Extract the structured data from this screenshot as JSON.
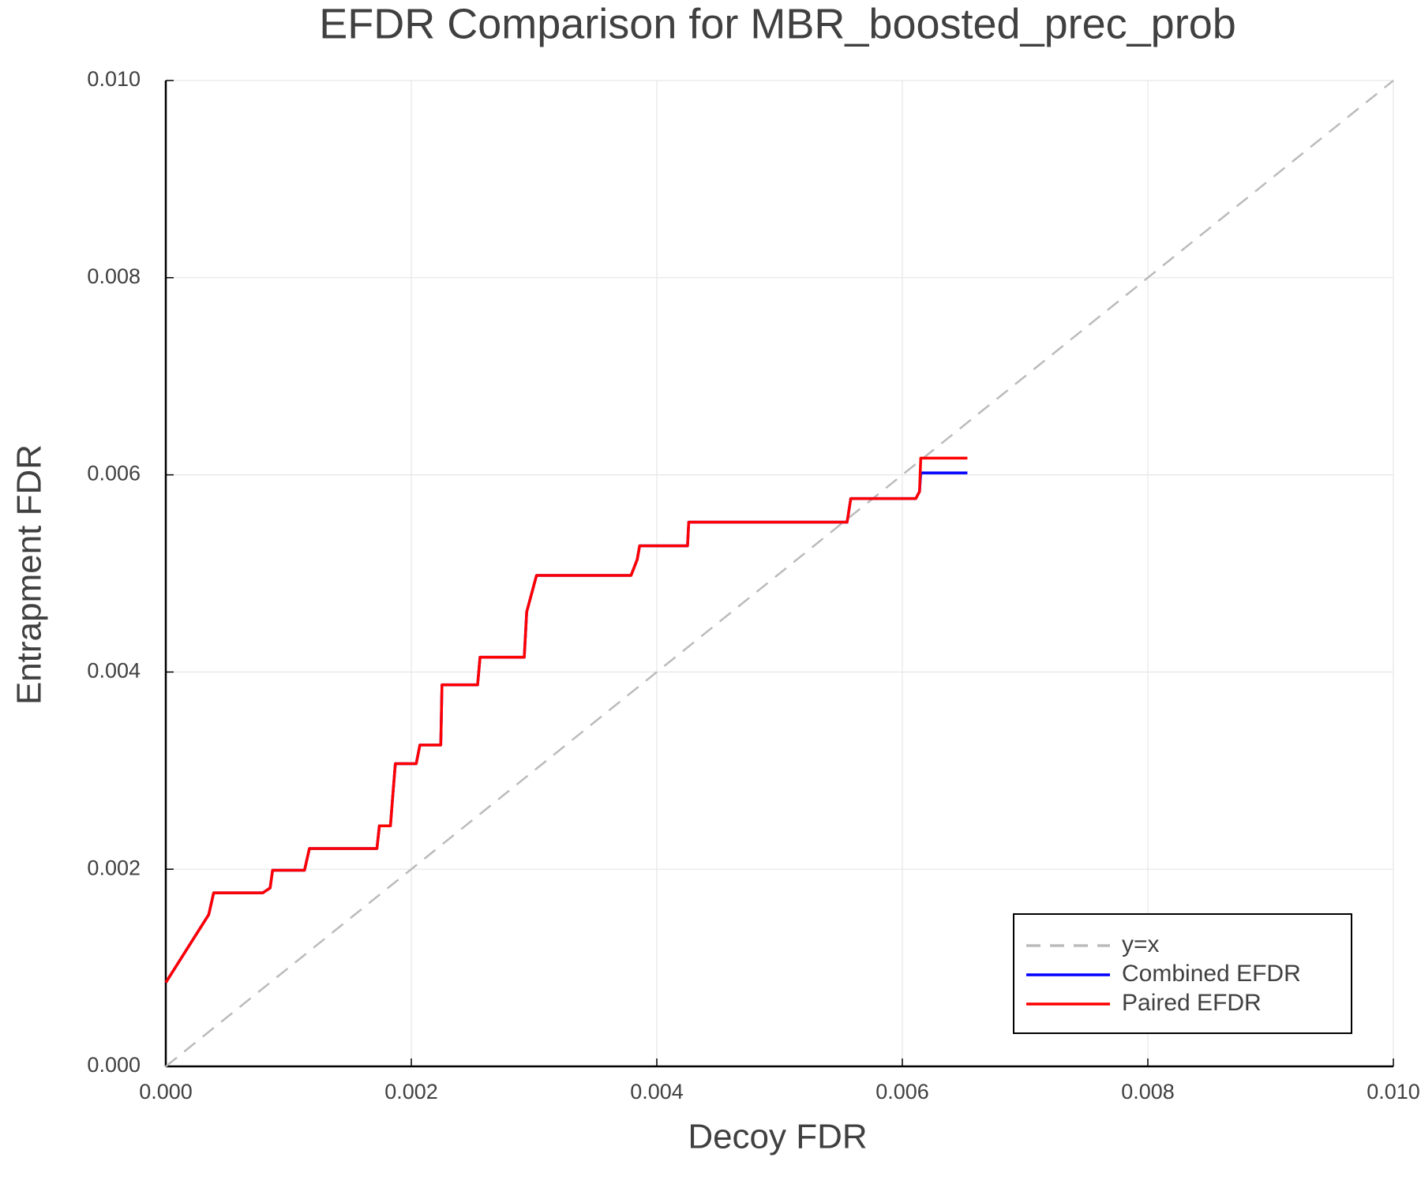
{
  "chart_data": {
    "type": "line",
    "title": "EFDR Comparison for MBR_boosted_prec_prob",
    "xlabel": "Decoy FDR",
    "ylabel": "Entrapment FDR",
    "xlim": [
      0,
      0.01
    ],
    "ylim": [
      0,
      0.01
    ],
    "xticks": [
      {
        "value": 0,
        "label": "0.000"
      },
      0.002,
      0.004,
      0.006,
      0.008,
      {
        "value": 0.01,
        "label": "0.010"
      }
    ],
    "yticks": [
      {
        "value": 0,
        "label": "0.000"
      },
      0.002,
      0.004,
      0.006,
      0.008,
      {
        "value": 0.01,
        "label": "0.010"
      }
    ],
    "grid": true,
    "legend": "lower right",
    "series": [
      {
        "name": "y=x",
        "color": "#bbbbbb",
        "dashed": true,
        "x": [
          0,
          0.01
        ],
        "values": [
          0,
          0.01
        ]
      },
      {
        "name": "Combined EFDR",
        "color": "#0000ff",
        "x": [
          0,
          0.00035,
          0.00039,
          0.00079,
          0.00085,
          0.00087,
          0.00113,
          0.00117,
          0.00172,
          0.00174,
          0.00183,
          0.00185,
          0.00187,
          0.00204,
          0.00207,
          0.00224,
          0.00225,
          0.00254,
          0.00256,
          0.00292,
          0.00294,
          0.00302,
          0.00379,
          0.00384,
          0.00386,
          0.00425,
          0.00426,
          0.00555,
          0.00558,
          0.00611,
          0.00614,
          0.00615,
          0.00653
        ],
        "values": [
          0.00085,
          0.00154,
          0.00176,
          0.00176,
          0.00181,
          0.00199,
          0.00199,
          0.00221,
          0.00221,
          0.00244,
          0.00244,
          0.00276,
          0.00307,
          0.00307,
          0.00326,
          0.00326,
          0.00387,
          0.00387,
          0.00415,
          0.00415,
          0.00461,
          0.00498,
          0.00498,
          0.00514,
          0.00528,
          0.00528,
          0.00552,
          0.00552,
          0.00576,
          0.00576,
          0.00583,
          0.00602,
          0.00602
        ]
      },
      {
        "name": "Paired EFDR",
        "color": "#ff0000",
        "x": [
          0,
          0.00035,
          0.00039,
          0.00079,
          0.00085,
          0.00087,
          0.00113,
          0.00117,
          0.00172,
          0.00174,
          0.00183,
          0.00185,
          0.00187,
          0.00204,
          0.00207,
          0.00224,
          0.00225,
          0.00254,
          0.00256,
          0.00292,
          0.00294,
          0.00302,
          0.00379,
          0.00384,
          0.00386,
          0.00425,
          0.00426,
          0.00555,
          0.00558,
          0.00611,
          0.00614,
          0.00615,
          0.00653
        ],
        "values": [
          0.00085,
          0.00154,
          0.00176,
          0.00176,
          0.00181,
          0.00199,
          0.00199,
          0.00221,
          0.00221,
          0.00244,
          0.00244,
          0.00276,
          0.00307,
          0.00307,
          0.00326,
          0.00326,
          0.00387,
          0.00387,
          0.00415,
          0.00415,
          0.00461,
          0.00498,
          0.00498,
          0.00514,
          0.00528,
          0.00528,
          0.00552,
          0.00552,
          0.00576,
          0.00576,
          0.00583,
          0.00617,
          0.00617
        ]
      }
    ]
  }
}
